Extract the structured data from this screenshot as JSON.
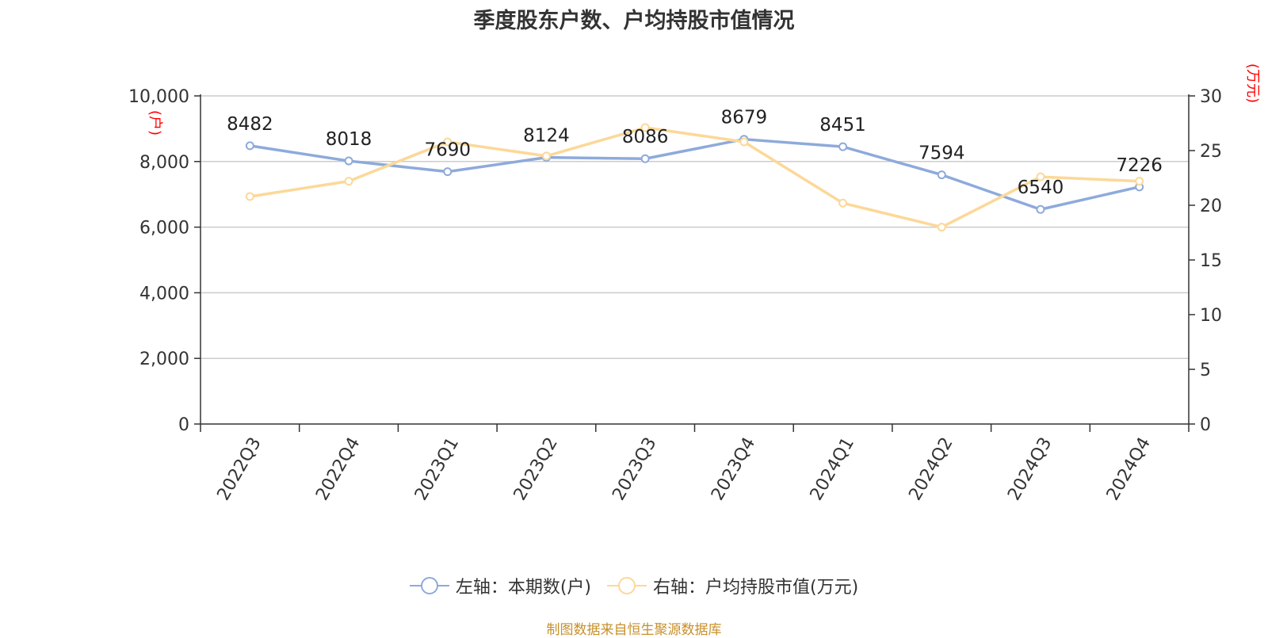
{
  "chart_data": {
    "type": "line",
    "title": "季度股东户数、户均持股市值情况",
    "categories": [
      "2022Q3",
      "2022Q4",
      "2023Q1",
      "2023Q2",
      "2023Q3",
      "2023Q4",
      "2024Q1",
      "2024Q2",
      "2024Q3",
      "2024Q4"
    ],
    "series": [
      {
        "name": "左轴：本期数(户)",
        "axis": "left",
        "color": "#8eaadb",
        "values": [
          8482,
          8018,
          7690,
          8124,
          8086,
          8679,
          8451,
          7594,
          6540,
          7226
        ],
        "labels": [
          "8482",
          "8018",
          "7690",
          "8124",
          "8086",
          "8679",
          "8451",
          "7594",
          "6540",
          "7226"
        ]
      },
      {
        "name": "右轴：户均持股市值(万元)",
        "axis": "right",
        "color": "#fcd898",
        "values": [
          20.8,
          22.2,
          25.8,
          24.5,
          27.1,
          25.8,
          20.2,
          18.0,
          22.6,
          22.2
        ]
      }
    ],
    "y_left": {
      "label": "(户)",
      "ticks": [
        "0",
        "2,000",
        "4,000",
        "6,000",
        "8,000",
        "10,000"
      ],
      "range": [
        0,
        10000
      ]
    },
    "y_right": {
      "label": "(万元)",
      "ticks": [
        "0",
        "5",
        "10",
        "15",
        "20",
        "25",
        "30"
      ],
      "range": [
        0,
        30
      ]
    },
    "grid": true,
    "legend_position": "bottom-center",
    "colors": {
      "left_axis_label": "#ff0000",
      "axis": "#333333",
      "grid": "#cccccc"
    }
  },
  "source_text": "制图数据来自恒生聚源数据库"
}
